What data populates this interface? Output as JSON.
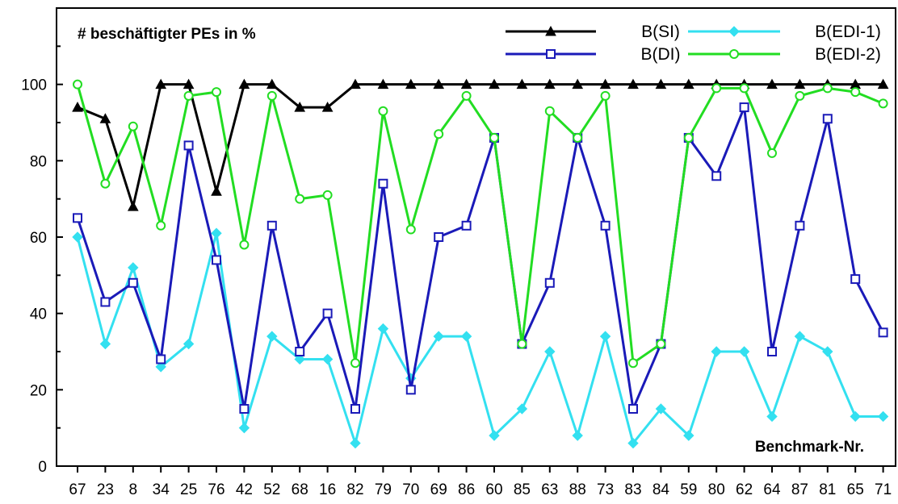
{
  "chart_data": {
    "type": "line",
    "title": "# beschäftigter PEs in %",
    "xlabel": "Benchmark-Nr.",
    "ylabel": "",
    "ylim": [
      0,
      120
    ],
    "yticks": [
      0,
      20,
      40,
      60,
      80,
      100
    ],
    "grid": false,
    "legend_position": "top-right",
    "categories": [
      "67",
      "23",
      "8",
      "34",
      "25",
      "76",
      "42",
      "52",
      "68",
      "16",
      "82",
      "79",
      "70",
      "69",
      "86",
      "60",
      "85",
      "63",
      "88",
      "73",
      "83",
      "84",
      "59",
      "80",
      "62",
      "64",
      "87",
      "81",
      "65",
      "71"
    ],
    "series": [
      {
        "name": "B(SI)",
        "color": "#000000",
        "marker": "filled-triangle",
        "values": [
          94,
          91,
          68,
          100,
          100,
          72,
          100,
          100,
          94,
          94,
          100,
          100,
          100,
          100,
          100,
          100,
          100,
          100,
          100,
          100,
          100,
          100,
          100,
          100,
          100,
          100,
          100,
          100,
          100,
          100
        ]
      },
      {
        "name": "B(DI)",
        "color": "#1a1ab8",
        "marker": "open-square",
        "values": [
          65,
          43,
          48,
          28,
          84,
          54,
          15,
          63,
          30,
          40,
          15,
          74,
          20,
          60,
          63,
          86,
          32,
          48,
          86,
          63,
          15,
          32,
          86,
          76,
          94,
          30,
          63,
          91,
          49,
          35
        ]
      },
      {
        "name": "B(EDI-1)",
        "color": "#33e0f0",
        "marker": "filled-diamond",
        "values": [
          60,
          32,
          52,
          26,
          32,
          61,
          10,
          34,
          28,
          28,
          6,
          36,
          23,
          34,
          34,
          8,
          15,
          30,
          8,
          34,
          6,
          15,
          8,
          30,
          30,
          13,
          34,
          30,
          13,
          13
        ]
      },
      {
        "name": "B(EDI-2)",
        "color": "#22dd22",
        "marker": "open-circle",
        "values": [
          100,
          74,
          89,
          63,
          97,
          98,
          58,
          97,
          70,
          71,
          27,
          93,
          62,
          87,
          97,
          86,
          32,
          93,
          86,
          97,
          27,
          32,
          86,
          99,
          99,
          82,
          97,
          99,
          98,
          95
        ]
      }
    ]
  }
}
